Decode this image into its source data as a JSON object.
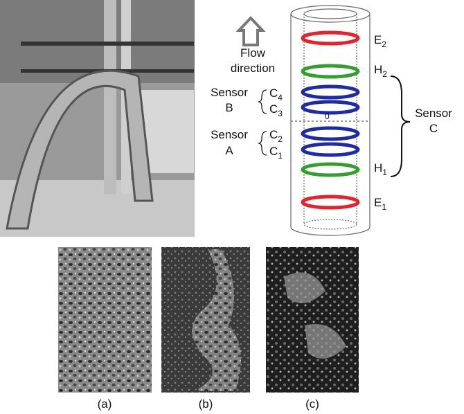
{
  "diagram": {
    "flow_label": [
      "Flow",
      "direction"
    ],
    "sensor_b": {
      "label": [
        "Sensor",
        "B"
      ],
      "upper": {
        "letter": "C",
        "sub": "4"
      },
      "lower": {
        "letter": "C",
        "sub": "3"
      }
    },
    "sensor_a": {
      "label": [
        "Sensor",
        "A"
      ],
      "upper": {
        "letter": "C",
        "sub": "2"
      },
      "lower": {
        "letter": "C",
        "sub": "1"
      }
    },
    "origin": "0",
    "right_labels": [
      {
        "letter": "E",
        "sub": "2"
      },
      {
        "letter": "H",
        "sub": "2"
      },
      {
        "letter": "H",
        "sub": "1"
      },
      {
        "letter": "E",
        "sub": "1"
      }
    ],
    "sensor_c": [
      "Sensor",
      "C"
    ]
  },
  "captions": [
    "(a)",
    "(b)",
    "(c)"
  ]
}
